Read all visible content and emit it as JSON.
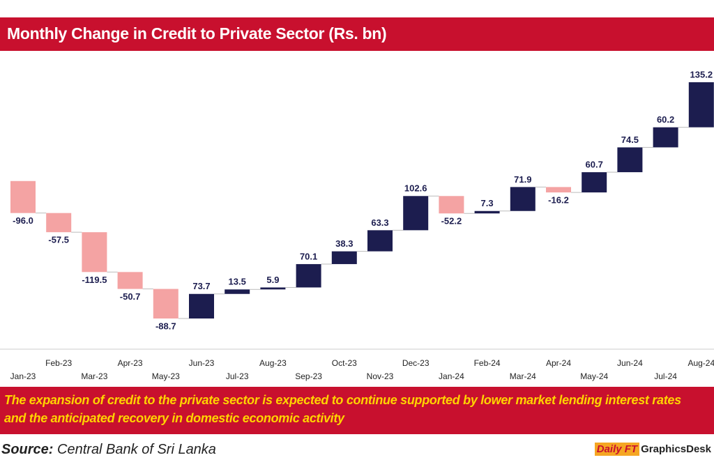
{
  "chart_data": {
    "type": "waterfall",
    "title": "Monthly Change in Credit to Private Sector (Rs. bn)",
    "categories": [
      "Jan-23",
      "Feb-23",
      "Mar-23",
      "Apr-23",
      "May-23",
      "Jun-23",
      "Jul-23",
      "Aug-23",
      "Sep-23",
      "Oct-23",
      "Nov-23",
      "Dec-23",
      "Jan-24",
      "Feb-24",
      "Mar-24",
      "Apr-24",
      "May-24",
      "Jun-24",
      "Jul-24",
      "Aug-24"
    ],
    "values": [
      -96.0,
      -57.5,
      -119.5,
      -50.7,
      -88.7,
      73.7,
      13.5,
      5.9,
      70.1,
      38.3,
      63.3,
      102.6,
      -52.2,
      7.3,
      71.9,
      -16.2,
      60.7,
      74.5,
      60.2,
      135.2
    ],
    "value_labels": [
      "-96.0",
      "-57.5",
      "-119.5",
      "-50.7",
      "-88.7",
      "73.7",
      "13.5",
      "5.9",
      "70.1",
      "38.3",
      "63.3",
      "102.6",
      "-52.2",
      "7.3",
      "71.9",
      "-16.2",
      "60.7",
      "74.5",
      "60.2",
      "135.2"
    ],
    "colors": {
      "positive": "#1c1d4f",
      "negative": "#f4a3a3"
    },
    "annotation": "The expansion of credit to the private sector is expected to continue supported by lower market lending interest rates and the anticipated recovery in domestic economic activity",
    "source": {
      "label": "Source:",
      "text": "Central Bank of Sri Lanka"
    },
    "logo": {
      "brand": "Daily FT",
      "desk": "GraphicsDesk"
    }
  }
}
